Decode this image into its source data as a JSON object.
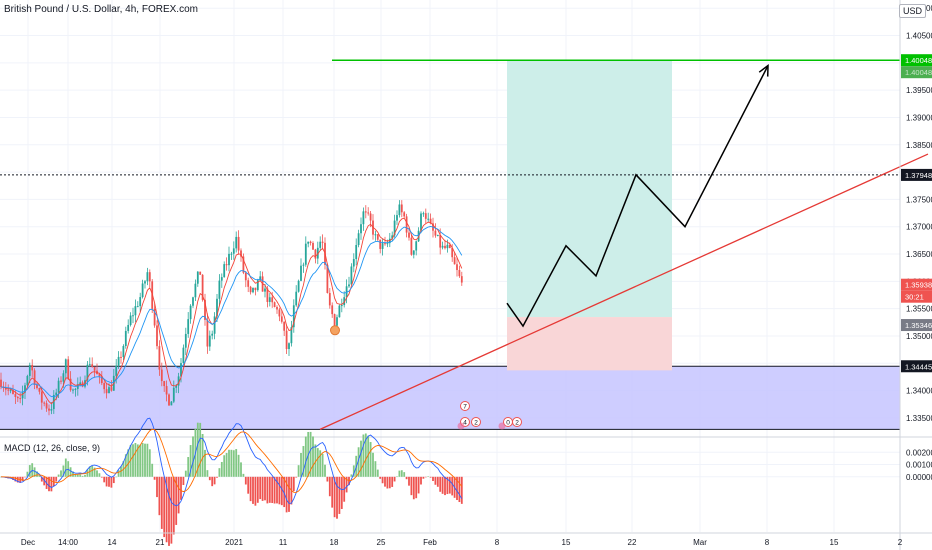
{
  "header": {
    "title": "British Pound / U.S. Dollar, 4h, FOREX.com",
    "currency_button": "USD",
    "macd_label": "MACD (12, 26, close, 9)"
  },
  "price_labels": {
    "target": "1.40048",
    "target_sub": "1.40048",
    "resistance": "1.37948",
    "current": "1.35938",
    "countdown": "30:21",
    "stop": "1.35346",
    "support": "1.34445"
  },
  "event_markers": [
    "7",
    "4",
    "2",
    "0",
    "2"
  ],
  "colors": {
    "up": "#26a69a",
    "down": "#ef5350",
    "target_line": "#00c000",
    "trendline": "#e53935",
    "support_zone": "#c5c4ff",
    "profit_zone": "#cdeee9",
    "loss_zone": "#f9d6d7",
    "ema_fast": "#f44336",
    "ema_slow": "#2196f3",
    "macd_line": "#2962ff",
    "signal_line": "#ff6d00",
    "hist_pos": "#81c784",
    "hist_neg": "#ef5350"
  },
  "chart_data": {
    "type": "candlestick",
    "x_tick_labels": [
      "Dec",
      "14:00",
      "14",
      "21",
      "2021",
      "11",
      "18",
      "25",
      "Feb",
      "8",
      "15",
      "22",
      "Mar",
      "8",
      "15",
      "2"
    ],
    "y_ticks": [
      1.41,
      1.405,
      1.4,
      1.395,
      1.39,
      1.385,
      1.38,
      1.375,
      1.37,
      1.365,
      1.36,
      1.355,
      1.35,
      1.345,
      1.34,
      1.335
    ],
    "y_tick_labels": [
      "1.41000",
      "1.40500",
      "1.40000",
      "1.39500",
      "1.39000",
      "1.38500",
      "1.38000",
      "1.37500",
      "1.37000",
      "1.36500",
      "1.36000",
      "1.35500",
      "1.35000",
      "1.34500",
      "1.34000",
      "1.33500"
    ],
    "ylim": [
      1.3315,
      1.4115
    ],
    "macd_y_ticks": [
      0.002,
      0.001,
      0.0
    ],
    "macd_y_tick_labels": [
      "0.00200",
      "0.00100",
      "0.00000"
    ],
    "macd_ylim": [
      -0.0045,
      0.003
    ],
    "price_path_keypoints": [
      [
        0,
        1.342
      ],
      [
        10,
        1.3395
      ],
      [
        20,
        1.3375
      ],
      [
        30,
        1.345
      ],
      [
        40,
        1.3385
      ],
      [
        50,
        1.3365
      ],
      [
        58,
        1.3405
      ],
      [
        66,
        1.345
      ],
      [
        72,
        1.3398
      ],
      [
        80,
        1.3405
      ],
      [
        90,
        1.3455
      ],
      [
        100,
        1.3415
      ],
      [
        110,
        1.34
      ],
      [
        120,
        1.346
      ],
      [
        130,
        1.353
      ],
      [
        140,
        1.357
      ],
      [
        148,
        1.362
      ],
      [
        155,
        1.352
      ],
      [
        162,
        1.3405
      ],
      [
        170,
        1.338
      ],
      [
        180,
        1.344
      ],
      [
        190,
        1.356
      ],
      [
        200,
        1.362
      ],
      [
        207,
        1.348
      ],
      [
        212,
        1.3505
      ],
      [
        220,
        1.36
      ],
      [
        228,
        1.364
      ],
      [
        236,
        1.368
      ],
      [
        243,
        1.362
      ],
      [
        250,
        1.357
      ],
      [
        260,
        1.36
      ],
      [
        270,
        1.356
      ],
      [
        280,
        1.354
      ],
      [
        288,
        1.3465
      ],
      [
        293,
        1.354
      ],
      [
        300,
        1.361
      ],
      [
        308,
        1.368
      ],
      [
        315,
        1.365
      ],
      [
        322,
        1.368
      ],
      [
        328,
        1.356
      ],
      [
        335,
        1.3525
      ],
      [
        343,
        1.3575
      ],
      [
        350,
        1.361
      ],
      [
        357,
        1.368
      ],
      [
        363,
        1.3725
      ],
      [
        370,
        1.371
      ],
      [
        377,
        1.367
      ],
      [
        385,
        1.366
      ],
      [
        392,
        1.3685
      ],
      [
        398,
        1.3735
      ],
      [
        405,
        1.3715
      ],
      [
        411,
        1.365
      ],
      [
        417,
        1.368
      ],
      [
        423,
        1.3735
      ],
      [
        430,
        1.37
      ],
      [
        436,
        1.368
      ],
      [
        442,
        1.366
      ],
      [
        448,
        1.366
      ],
      [
        455,
        1.3625
      ],
      [
        462,
        1.3594
      ]
    ],
    "levels": {
      "target": 1.40048,
      "resistance": 1.37948,
      "stop": 1.35346,
      "support": 1.34445,
      "entry": 1.35346,
      "support_zone": [
        1.3329,
        1.34445
      ]
    },
    "projection_path": [
      [
        507,
        1.356
      ],
      [
        523,
        1.3518
      ],
      [
        566,
        1.3665
      ],
      [
        596,
        1.361
      ],
      [
        636,
        1.3795
      ],
      [
        685,
        1.37
      ],
      [
        768,
        1.3995
      ]
    ],
    "trendline": [
      [
        320,
        1.3329
      ],
      [
        928,
        1.3833
      ]
    ],
    "position_box_x": [
      507,
      672
    ],
    "target_line_x": [
      332,
      900
    ],
    "resistance_line_x": [
      0,
      900
    ],
    "earnings_pivot_x": 335
  }
}
